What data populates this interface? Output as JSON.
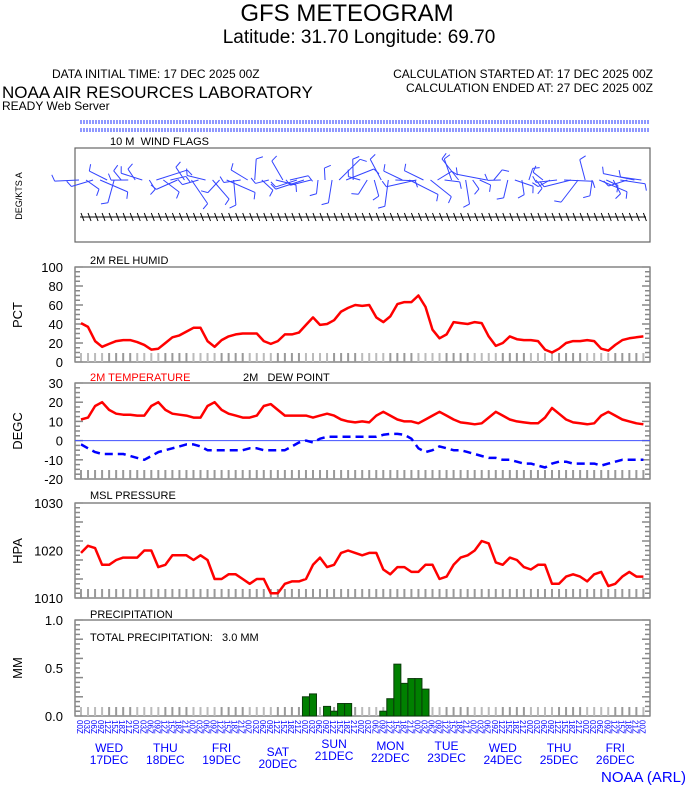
{
  "header": {
    "title": "GFS METEOGRAM",
    "location": "Latitude: 31.70 Longitude:  69.70",
    "data_initial_time": "DATA INITIAL TIME: 17 DEC 2025 00Z",
    "calc_started": "CALCULATION STARTED AT: 17 DEC 2025 00Z",
    "calc_ended": "CALCULATION ENDED AT: 27 DEC 2025 00Z",
    "org": "NOAA AIR RESOURCES LABORATORY",
    "server": "READY Web Server"
  },
  "footer": {
    "credit": "NOAA (ARL)"
  },
  "colors": {
    "red": "#ff0000",
    "blue": "#0000ff",
    "precip": "#008000"
  },
  "chart_data": [
    {
      "type": "wind-barbs",
      "title": "10 M  WIND FLAGS",
      "ylabel": "DEG/KTS A"
    },
    {
      "type": "line",
      "title": "2M REL HUMID",
      "ylabel": "PCT",
      "ylim": [
        0,
        100
      ],
      "yticks": [
        "100",
        "80",
        "60",
        "40",
        "20",
        "0"
      ],
      "series": [
        {
          "name": "2M REL HUMID",
          "color": "#ff0000",
          "values": [
            41,
            37,
            22,
            16,
            19,
            22,
            23,
            23,
            21,
            18,
            13,
            14,
            20,
            26,
            28,
            32,
            36,
            36,
            22,
            16,
            23,
            27,
            29,
            30,
            30,
            30,
            22,
            19,
            22,
            29,
            29,
            31,
            39,
            47,
            39,
            40,
            44,
            53,
            57,
            60,
            59,
            60,
            47,
            42,
            48,
            61,
            63,
            63,
            70,
            58,
            34,
            25,
            29,
            42,
            41,
            40,
            42,
            41,
            27,
            17,
            20,
            27,
            24,
            23,
            23,
            22,
            13,
            10,
            14,
            20,
            22,
            22,
            23,
            22,
            14,
            12,
            18,
            23,
            25,
            26,
            27
          ]
        }
      ]
    },
    {
      "type": "line",
      "title": "",
      "ylabel": "DEGC",
      "ylim": [
        -20,
        30
      ],
      "yticks": [
        "30",
        "20",
        "10",
        "0",
        "-10",
        "-20"
      ],
      "series": [
        {
          "name": "2M TEMPERATURE",
          "color": "#ff0000",
          "style": "solid",
          "values": [
            11,
            12,
            18,
            20,
            16,
            14,
            13.5,
            13.5,
            13,
            13,
            18,
            20,
            16,
            14,
            13.5,
            13,
            12,
            12,
            18,
            20,
            16,
            14,
            13,
            12,
            12,
            13,
            18,
            19,
            16,
            13,
            13,
            13,
            13,
            12,
            13,
            14,
            13,
            11,
            10,
            9.5,
            10,
            9.5,
            13,
            15,
            13,
            11,
            10,
            10,
            9,
            11,
            13,
            15,
            13,
            11,
            9.5,
            9,
            8.5,
            9,
            12,
            15,
            13,
            11,
            10,
            9.5,
            9,
            9,
            12,
            17,
            14,
            11,
            9.5,
            9,
            8.5,
            9,
            13,
            15,
            13,
            11,
            10,
            9,
            8.5
          ]
        },
        {
          "name": "2M   DEW POINT",
          "color": "#0000ff",
          "style": "dashed",
          "values": [
            -2,
            -4,
            -6,
            -7,
            -7,
            -7,
            -7,
            -8,
            -9,
            -10,
            -8,
            -6,
            -5,
            -4,
            -3,
            -2,
            -2,
            -3,
            -5,
            -5,
            -5,
            -5,
            -5,
            -5,
            -4,
            -4,
            -5,
            -5,
            -5,
            -5,
            -3,
            -1,
            0,
            -1,
            1,
            2,
            2,
            2,
            2,
            2,
            2,
            2,
            2,
            3,
            3.5,
            3.5,
            3,
            1,
            -4,
            -6,
            -5,
            -3,
            -4,
            -5,
            -5,
            -6,
            -7,
            -8,
            -9,
            -9,
            -10,
            -10,
            -11,
            -12,
            -12,
            -13,
            -14,
            -12,
            -11,
            -11,
            -12,
            -12,
            -12,
            -12,
            -13,
            -12,
            -11,
            -10,
            -10,
            -10,
            -10
          ]
        }
      ]
    },
    {
      "type": "line",
      "title": "MSL PRESSURE",
      "ylabel": "HPA",
      "ylim": [
        1010,
        1030
      ],
      "yticks": [
        "1030",
        "1020",
        "1010"
      ],
      "series": [
        {
          "name": "MSL PRESSURE",
          "color": "#ff0000",
          "values": [
            1019.5,
            1021,
            1020.5,
            1017,
            1017,
            1018,
            1018.5,
            1018.5,
            1018.5,
            1020,
            1020,
            1016.5,
            1017,
            1019,
            1019,
            1019,
            1018,
            1019,
            1018,
            1014,
            1014,
            1015,
            1015,
            1014,
            1013,
            1014,
            1014,
            1011,
            1011,
            1013,
            1013.5,
            1013.5,
            1014,
            1017,
            1018.5,
            1016.5,
            1017,
            1019.5,
            1020,
            1019.5,
            1019,
            1019.5,
            1019.5,
            1016,
            1015,
            1016.5,
            1016.5,
            1015.5,
            1015.5,
            1017,
            1017,
            1014,
            1014.5,
            1017,
            1018.5,
            1019,
            1020,
            1022,
            1021.5,
            1017.5,
            1017,
            1018.5,
            1018,
            1016.5,
            1016,
            1017,
            1017,
            1013,
            1013,
            1014.5,
            1015,
            1014.5,
            1013.5,
            1015,
            1015.5,
            1012.5,
            1013,
            1014.5,
            1015.5,
            1014.5,
            1014.5
          ]
        }
      ]
    },
    {
      "type": "bar",
      "title": "PRECIPITATION",
      "annotation": "TOTAL PRECIPITATION:   3.0 MM",
      "ylabel": "MM",
      "ylim": [
        0,
        1.0
      ],
      "yticks": [
        "1.0",
        "0.5",
        "0.0"
      ],
      "bars": [
        {
          "step": 32,
          "value": 0.2
        },
        {
          "step": 33,
          "value": 0.23
        },
        {
          "step": 35,
          "value": 0.1
        },
        {
          "step": 36,
          "value": 0.05
        },
        {
          "step": 37,
          "value": 0.13
        },
        {
          "step": 38,
          "value": 0.13
        },
        {
          "step": 43,
          "value": 0.05
        },
        {
          "step": 44,
          "value": 0.18
        },
        {
          "step": 45,
          "value": 0.54
        },
        {
          "step": 46,
          "value": 0.34
        },
        {
          "step": 47,
          "value": 0.39
        },
        {
          "step": 48,
          "value": 0.39
        },
        {
          "step": 49,
          "value": 0.28
        }
      ]
    }
  ],
  "xaxis": {
    "hour_labels": [
      "00Z",
      "03Z",
      "06Z",
      "09Z",
      "12Z",
      "15Z",
      "18Z",
      "21Z"
    ],
    "days": [
      {
        "dow": "WED",
        "date": "17DEC"
      },
      {
        "dow": "THU",
        "date": "18DEC"
      },
      {
        "dow": "FRI",
        "date": "19DEC"
      },
      {
        "dow": "SAT",
        "date": "20DEC"
      },
      {
        "dow": "SUN",
        "date": "21DEC"
      },
      {
        "dow": "MON",
        "date": "22DEC"
      },
      {
        "dow": "TUE",
        "date": "23DEC"
      },
      {
        "dow": "WED",
        "date": "24DEC"
      },
      {
        "dow": "THU",
        "date": "25DEC"
      },
      {
        "dow": "FRI",
        "date": "26DEC"
      }
    ]
  }
}
